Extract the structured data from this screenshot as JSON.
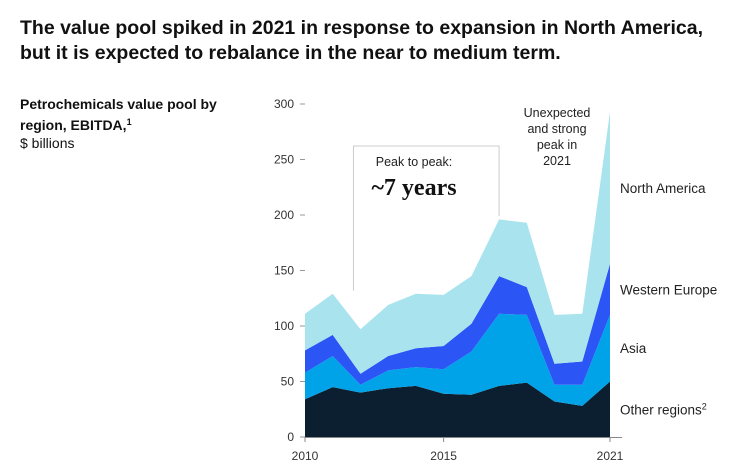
{
  "title": "The value pool spiked in 2021 in response to expansion in North America, but it is expected to rebalance in the near to medium term.",
  "ylabel_main": "Petrochemicals value pool by region, EBITDA,",
  "ylabel_sup": "1",
  "ylabel_unit": "$ billions",
  "annotations": {
    "peak_to_peak_label": "Peak to peak:",
    "peak_to_peak_value": "~7 years",
    "spike_line1": "Unexpected",
    "spike_line2": "and strong",
    "spike_line3": "peak in",
    "spike_line4": "2021"
  },
  "chart_data": {
    "type": "area",
    "stacked": true,
    "x": [
      2010,
      2011,
      2012,
      2013,
      2014,
      2015,
      2016,
      2017,
      2018,
      2019,
      2020,
      2021
    ],
    "x_tick_labels": [
      "2010",
      "2015",
      "2021"
    ],
    "y_tick_labels": [
      "0",
      "50",
      "100",
      "150",
      "200",
      "250",
      "300"
    ],
    "ylim": [
      0,
      300
    ],
    "grid": false,
    "series": [
      {
        "name": "Other regions",
        "name_sup": "2",
        "color": "#0b1f30",
        "values": [
          34,
          45,
          40,
          44,
          46,
          39,
          38,
          46,
          49,
          32,
          28,
          50
        ]
      },
      {
        "name": "Asia",
        "color": "#00a3e8",
        "values": [
          24,
          28,
          7,
          16,
          17,
          22,
          39,
          65,
          61,
          15,
          19,
          60
        ]
      },
      {
        "name": "Western Europe",
        "color": "#2b56f5",
        "values": [
          20,
          19,
          10,
          13,
          17,
          21,
          25,
          34,
          25,
          19,
          21,
          46
        ]
      },
      {
        "name": "North America",
        "color": "#a9e4ee",
        "values": [
          33,
          37,
          40,
          46,
          49,
          46,
          43,
          51,
          58,
          44,
          43,
          137
        ]
      }
    ]
  }
}
